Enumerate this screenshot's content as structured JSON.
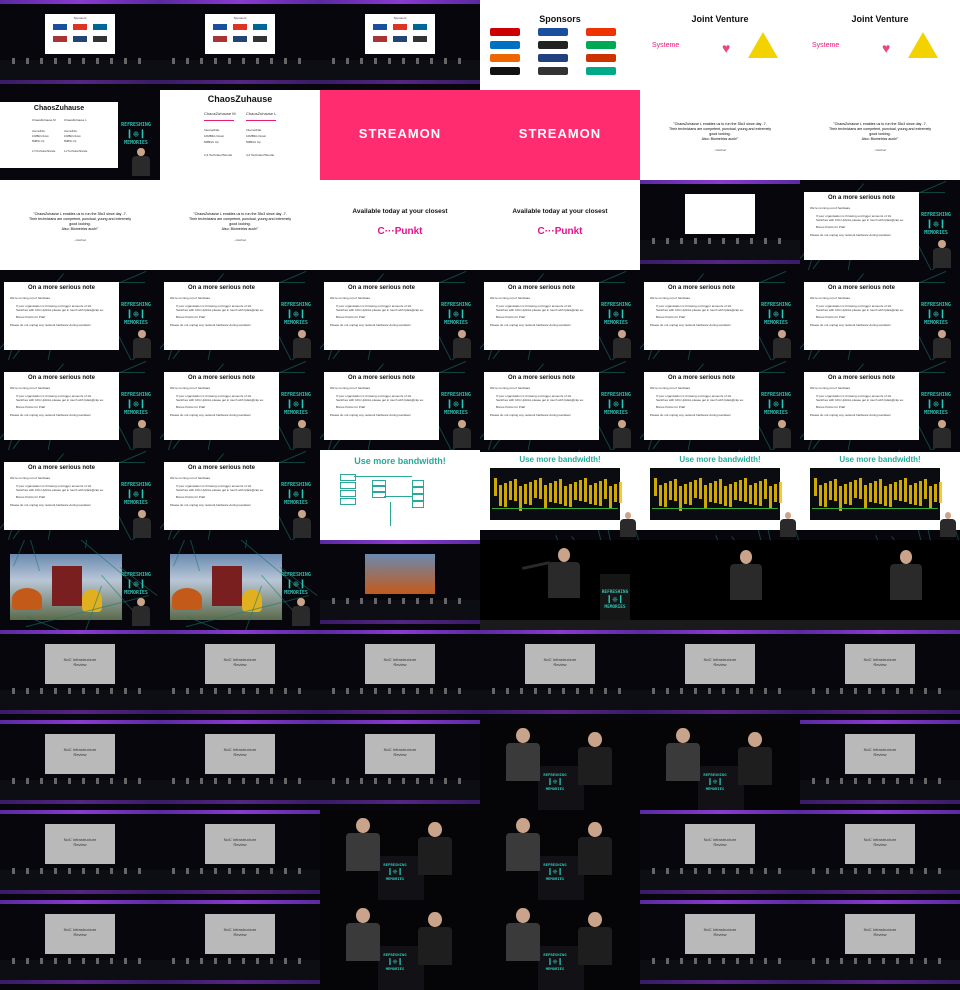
{
  "texts": {
    "sponsors": "Sponsors",
    "joint_venture": "Joint Venture",
    "systeme": "Systeme",
    "chaoszuhause": "ChaosZuhause",
    "cz_m": "ChaosZuhause M",
    "cz_l": "ChaosZuhause L",
    "internet_flat": "InternetFlat",
    "down": "10MBit/s Down",
    "up": "5MBit/s Up",
    "techs_m": "2,3 Techniker/Stunde",
    "techs_l": "4,2 Techniker/Stunde",
    "streamon": "STREAMON",
    "quote_line1": "\"ChaosZuhause L enables us to run the 35c3 since day -7.",
    "quote_line2": "Their technicians are competent, punctual, young and extremely",
    "quote_line3": "good looking.",
    "quote_line4": "Also: Biometrics auch!\"",
    "quote_author": "- nöc/noc",
    "available": "Available today at your closest",
    "cpunkt": "C···Punkt",
    "serious_title": "On a more serious note",
    "serious_b1": "We're running out of hardware",
    "serious_b2": "If your organisation is throwing out bigger amounts of 1G",
    "serious_b3": "Switches with 10G Uplinks please get in touch with fplais@ckp.eu",
    "serious_b4": "Bonus Points for PoE!",
    "serious_b5": "Please do not unplug any network hardware during teardown",
    "bandwidth": "Use more bandwidth!",
    "infra_review_1": "NoC Infrastructure",
    "infra_review_2": "Review",
    "logo_line1": "REFRESHING",
    "logo_line2": "MEMORIES"
  },
  "colors": {
    "streamon_bg": "#ff2d6f",
    "bandwidth_title": "#2aa89a",
    "teal_logo": "#2dc2b3",
    "cpunkt": "#e0148c"
  }
}
